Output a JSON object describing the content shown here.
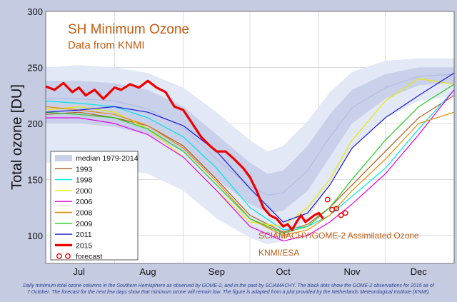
{
  "chart_data": {
    "type": "line",
    "title": "SH Minimum Ozone",
    "subtitle": "Data from KNMI",
    "ylabel": "Total ozone [DU]",
    "xlabel": "",
    "ylim": [
      75,
      300
    ],
    "yticks": [
      100,
      150,
      200,
      250,
      300
    ],
    "xlim": [
      182,
      366
    ],
    "x_units": "day of year",
    "months": [
      {
        "label": "Jul",
        "day": 197
      },
      {
        "label": "Aug",
        "day": 228
      },
      {
        "label": "Sep",
        "day": 259
      },
      {
        "label": "Oct",
        "day": 289
      },
      {
        "label": "Nov",
        "day": 320
      },
      {
        "label": "Dec",
        "day": 350
      }
    ],
    "grid": true,
    "legend_position": "bottom-left",
    "annotations": [
      "SCIAMACHY/GOME-2 Assimilated Ozone",
      "KNMI/ESA"
    ],
    "median_band": {
      "name": "median 1979-2014",
      "x": [
        182,
        197,
        213,
        228,
        244,
        259,
        274,
        282,
        289,
        300,
        310,
        320,
        335,
        350,
        366
      ],
      "outer_lo": [
        165,
        165,
        160,
        155,
        140,
        115,
        98,
        92,
        95,
        115,
        145,
        178,
        205,
        220,
        225
      ],
      "inner_lo": [
        200,
        200,
        197,
        190,
        175,
        150,
        128,
        120,
        122,
        140,
        170,
        200,
        222,
        234,
        236
      ],
      "median": [
        222,
        222,
        220,
        213,
        196,
        168,
        144,
        136,
        138,
        158,
        188,
        214,
        232,
        242,
        244
      ],
      "inner_hi": [
        238,
        238,
        236,
        230,
        215,
        190,
        165,
        155,
        158,
        180,
        208,
        230,
        244,
        250,
        250
      ],
      "outer_hi": [
        250,
        252,
        250,
        245,
        232,
        210,
        185,
        175,
        180,
        202,
        228,
        246,
        256,
        258,
        258
      ]
    },
    "series": [
      {
        "name": "1993",
        "color": "#b25a1c",
        "x": [
          182,
          197,
          213,
          228,
          244,
          259,
          274,
          289,
          300,
          310,
          320,
          335,
          350,
          366
        ],
        "values": [
          208,
          210,
          205,
          198,
          180,
          150,
          118,
          103,
          110,
          125,
          145,
          175,
          205,
          225
        ]
      },
      {
        "name": "1998",
        "color": "#00e5e5",
        "x": [
          182,
          197,
          213,
          228,
          244,
          259,
          274,
          289,
          300,
          310,
          320,
          335,
          350,
          366
        ],
        "values": [
          220,
          218,
          215,
          205,
          188,
          160,
          125,
          105,
          108,
          118,
          135,
          160,
          195,
          230
        ]
      },
      {
        "name": "2000",
        "color": "#e8e800",
        "x": [
          182,
          197,
          213,
          228,
          244,
          259,
          274,
          289,
          300,
          310,
          320,
          335,
          350,
          366
        ],
        "values": [
          212,
          215,
          210,
          195,
          170,
          140,
          112,
          108,
          125,
          150,
          185,
          220,
          240,
          235
        ]
      },
      {
        "name": "2006",
        "color": "#e600e6",
        "x": [
          182,
          197,
          213,
          228,
          244,
          259,
          274,
          289,
          300,
          310,
          320,
          335,
          350,
          366
        ],
        "values": [
          205,
          205,
          200,
          190,
          170,
          140,
          108,
          95,
          100,
          112,
          128,
          155,
          190,
          230
        ]
      },
      {
        "name": "2008",
        "color": "#e68a00",
        "x": [
          182,
          197,
          213,
          228,
          244,
          259,
          274,
          289,
          300,
          310,
          320,
          335,
          350,
          366
        ],
        "values": [
          215,
          212,
          208,
          198,
          178,
          148,
          115,
          100,
          105,
          118,
          140,
          168,
          200,
          210
        ]
      },
      {
        "name": "2009",
        "color": "#22cc22",
        "x": [
          182,
          197,
          213,
          228,
          244,
          259,
          274,
          289,
          300,
          310,
          320,
          335,
          350,
          366
        ],
        "values": [
          210,
          208,
          205,
          195,
          175,
          145,
          115,
          102,
          108,
          125,
          150,
          185,
          215,
          235
        ]
      },
      {
        "name": "2011",
        "color": "#1a1ad9",
        "x": [
          182,
          197,
          213,
          228,
          244,
          259,
          274,
          289,
          300,
          310,
          320,
          335,
          350,
          366
        ],
        "values": [
          210,
          212,
          215,
          210,
          198,
          175,
          142,
          112,
          120,
          145,
          178,
          205,
          225,
          245
        ]
      },
      {
        "name": "2015",
        "color": "#ee0000",
        "x": [
          182,
          186,
          190,
          194,
          197,
          200,
          204,
          208,
          213,
          216,
          220,
          224,
          228,
          232,
          236,
          240,
          244,
          248,
          252,
          256,
          259,
          263,
          267,
          271,
          274,
          277,
          280,
          283,
          286,
          289,
          291,
          293,
          295,
          297,
          299,
          301,
          303,
          305,
          307
        ],
        "values": [
          233,
          230,
          236,
          228,
          232,
          225,
          230,
          222,
          232,
          230,
          235,
          232,
          238,
          232,
          228,
          215,
          212,
          200,
          188,
          180,
          175,
          175,
          168,
          160,
          152,
          140,
          125,
          118,
          115,
          108,
          110,
          105,
          112,
          118,
          112,
          115,
          118,
          120,
          115
        ]
      },
      {
        "name": "forecast",
        "color": "#ee0000",
        "marker": "open-circle",
        "x": [
          309,
          311,
          313,
          315,
          317
        ],
        "values": [
          132,
          123,
          124,
          118,
          120
        ]
      }
    ]
  }
}
